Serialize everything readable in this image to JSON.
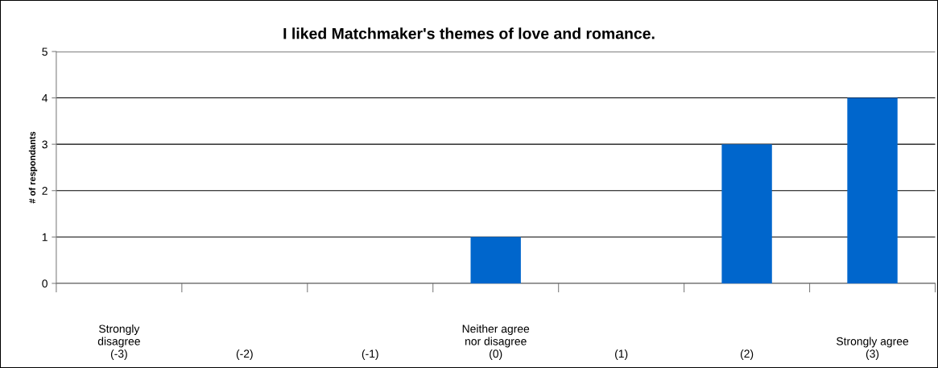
{
  "chart_data": {
    "type": "bar",
    "title": "I liked Matchmaker's themes of love and romance.",
    "ylabel": "# of respondants",
    "categories": [
      "Strongly\ndisagree\n(-3)",
      "(-2)",
      "(-1)",
      "Neither agree\nnor disagree\n(0)",
      "(1)",
      "(2)",
      "Strongly agree\n(3)"
    ],
    "values": [
      0,
      0,
      0,
      1,
      0,
      3,
      4
    ],
    "color": "#0066cc",
    "ylim": [
      0,
      5
    ],
    "yticks": [
      0,
      1,
      2,
      3,
      4,
      5
    ],
    "grid": "y",
    "legend": false
  }
}
